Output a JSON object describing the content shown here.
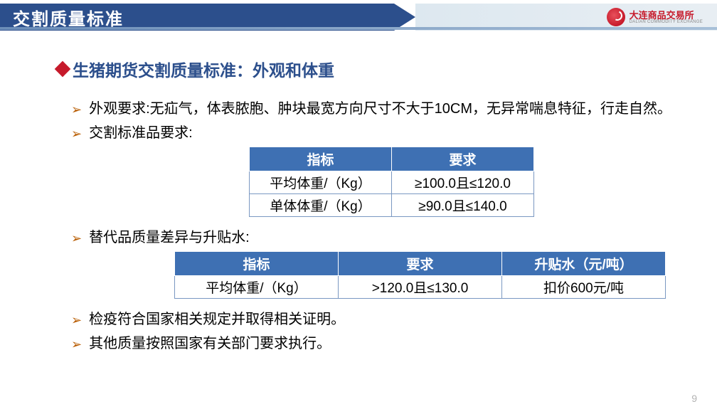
{
  "header": {
    "title": "交割质量标准",
    "logo_cn": "大连商品交易所",
    "logo_en": "DALIAN COMMODITY EXCHANGE"
  },
  "section": {
    "heading": "生猪期货交割质量标准：外观和体重"
  },
  "bullets": {
    "b1": "外观要求:无疝气，体表脓胞、肿块最宽方向尺寸不大于10CM，无异常喘息特征，行走自然。",
    "b2": "交割标准品要求:",
    "b3": "替代品质量差异与升贴水:",
    "b4": "检疫符合国家相关规定并取得相关证明。",
    "b5": "其他质量按照国家有关部门要求执行。"
  },
  "table1": {
    "headers": {
      "c0": "指标",
      "c1": "要求"
    },
    "rows": [
      {
        "c0": "平均体重/（Kg）",
        "c1": "≥100.0且≤120.0"
      },
      {
        "c0": "单体体重/（Kg）",
        "c1": "≥90.0且≤140.0"
      }
    ]
  },
  "table2": {
    "headers": {
      "c0": "指标",
      "c1": "要求",
      "c2": "升贴水（元/吨）"
    },
    "rows": [
      {
        "c0": "平均体重/（Kg）",
        "c1": ">120.0且≤130.0",
        "c2": "扣价600元/吨"
      }
    ]
  },
  "page_number": "9",
  "colors": {
    "header_blue": "#2c4f8c",
    "accent_red": "#c61a2b",
    "table_header_bg": "#3e70b3",
    "bullet_arrow": "#b85c00"
  }
}
